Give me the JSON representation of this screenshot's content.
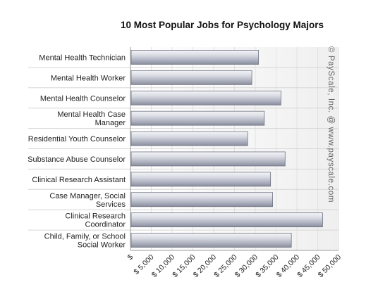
{
  "chart_data": {
    "type": "bar",
    "orientation": "horizontal",
    "title": "10 Most Popular Jobs for Psychology Majors",
    "categories": [
      "Mental Health Technician",
      "Mental Health Worker",
      "Mental Health Counselor",
      "Mental Health Case Manager",
      "Residential Youth Counselor",
      "Substance Abuse Counselor",
      "Clinical Research Assistant",
      "Case Manager, Social Services",
      "Clinical Research Coordinator",
      "Child, Family, or School Social Worker"
    ],
    "values": [
      30600,
      29000,
      36000,
      32000,
      28000,
      37000,
      33500,
      34000,
      46000,
      38500
    ],
    "xlim": [
      0,
      50000
    ],
    "x_ticks": [
      "$",
      "$ 5,000",
      "$ 10,000",
      "$ 15,000",
      "$ 20,000",
      "$ 25,000",
      "$ 30,000",
      "$ 35,000",
      "$ 40,000",
      "$ 45,000",
      "$ 50,000"
    ],
    "xlabel": "",
    "ylabel": "",
    "grid": true,
    "bar_color": "#b8bcc8",
    "watermark": "© PayScale, Inc. @ www.payscale.com"
  }
}
